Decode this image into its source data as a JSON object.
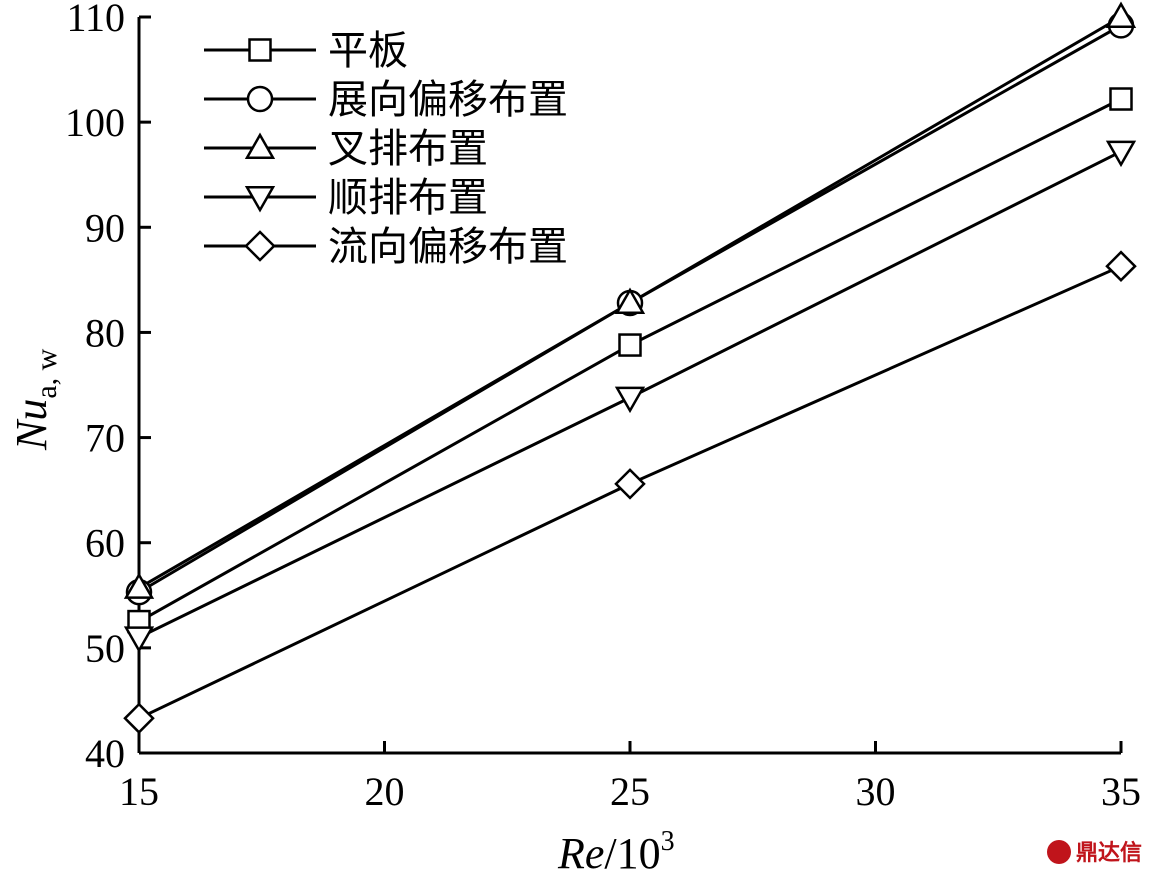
{
  "chart_data": {
    "type": "line",
    "xlabel": {
      "main": "Re",
      "mid": "/10",
      "sup": "3"
    },
    "ylabel": {
      "main": "Nu",
      "sub": "a, w"
    },
    "xlim": [
      15,
      35
    ],
    "ylim": [
      40,
      110
    ],
    "xticks": [
      15,
      20,
      25,
      30,
      35
    ],
    "yticks": [
      40,
      50,
      60,
      70,
      80,
      90,
      100,
      110
    ],
    "grid": false,
    "legend_position": "top-left",
    "x": [
      15,
      25,
      35
    ],
    "series": [
      {
        "name": "平板",
        "marker": "square",
        "values": [
          52.5,
          78.8,
          102.2
        ]
      },
      {
        "name": "展向偏移布置",
        "marker": "circle",
        "values": [
          55.3,
          82.8,
          109.2
        ]
      },
      {
        "name": "叉排布置",
        "marker": "triangle-up",
        "values": [
          55.7,
          82.8,
          110.0
        ]
      },
      {
        "name": "顺排布置",
        "marker": "triangle-down",
        "values": [
          51.0,
          73.8,
          97.2
        ]
      },
      {
        "name": "流向偏移布置",
        "marker": "diamond",
        "values": [
          43.3,
          65.6,
          86.3
        ]
      }
    ],
    "line_color": "#000000"
  },
  "watermark": {
    "text": "鼎达信",
    "icon": "seal-icon",
    "color": "#c0141b"
  }
}
